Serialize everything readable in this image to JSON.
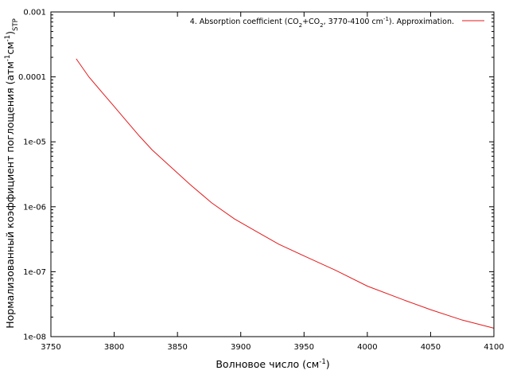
{
  "chart_data": {
    "type": "line",
    "xscale": "linear",
    "yscale": "log",
    "xlim": [
      3750,
      4100
    ],
    "ylim": [
      1e-08,
      0.001
    ],
    "grid": false,
    "legend_position": "top-right",
    "xlabel": {
      "main": "Волновое число (см",
      "sup": "-1",
      "end": ")"
    },
    "ylabel": {
      "main": "Нормализованный коэффициент поглощения (атм",
      "sup1": "-1",
      "mid": "см",
      "sup2": "-1",
      "close": ")",
      "sub": "STP"
    },
    "x_ticks": [
      "3750",
      "3800",
      "3850",
      "3900",
      "3950",
      "4000",
      "4050",
      "4100"
    ],
    "x_tick_values": [
      3750,
      3800,
      3850,
      3900,
      3950,
      4000,
      4050,
      4100
    ],
    "y_ticks": [
      "0.001",
      "0.0001",
      "1e-05",
      "1e-06",
      "1e-07",
      "1e-08"
    ],
    "y_tick_values": [
      0.001,
      0.0001,
      1e-05,
      1e-06,
      1e-07,
      1e-08
    ],
    "series": [
      {
        "legend": {
          "t1": "4. Absorption coefficient (CO",
          "s1": "2",
          "t2": "+CO",
          "s2": "2",
          "t3": ", 3770-4100 cm",
          "sup": "-1",
          "t4": "). Approximation."
        },
        "color": "#e41a1c",
        "x": [
          3770,
          3780,
          3790,
          3800,
          3810,
          3820,
          3830,
          3843,
          3860,
          3877,
          3895,
          3912,
          3930,
          3950,
          3975,
          4000,
          4030,
          4050,
          4075,
          4100
        ],
        "y": [
          0.00019,
          0.0001,
          5.9e-05,
          3.5e-05,
          2.06e-05,
          1.22e-05,
          7.5e-06,
          4.4e-06,
          2.2e-06,
          1.15e-06,
          6.5e-07,
          4.2e-07,
          2.65e-07,
          1.75e-07,
          1.05e-07,
          6e-08,
          3.6e-08,
          2.6e-08,
          1.8e-08,
          1.35e-08
        ]
      }
    ]
  }
}
